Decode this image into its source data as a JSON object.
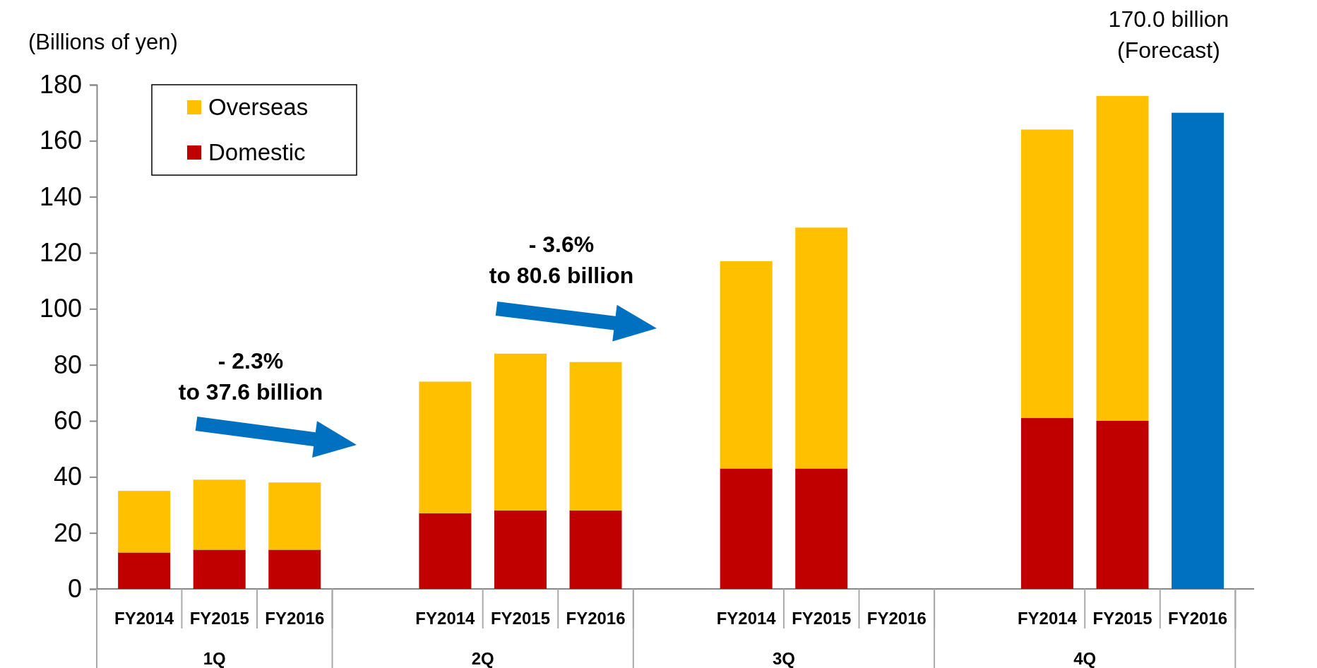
{
  "chart_data": {
    "type": "bar",
    "stacked": true,
    "ylabel": "(Billions of yen)",
    "categories": [
      "FY2014",
      "FY2015",
      "FY2016",
      "FY2014",
      "FY2015",
      "FY2016",
      "FY2014",
      "FY2015",
      "FY2016",
      "FY2014",
      "FY2015",
      "FY2016"
    ],
    "series": [
      {
        "name": "Domestic",
        "color": "#c00000",
        "values": [
          13,
          14,
          14,
          27,
          28,
          28,
          43,
          43,
          null,
          61,
          60,
          null
        ]
      },
      {
        "name": "Overseas",
        "color": "#ffc000",
        "values": [
          22,
          25,
          24,
          47,
          56,
          53,
          74,
          86,
          null,
          103,
          116,
          null
        ]
      },
      {
        "color": "#0070c0",
        "values": [
          null,
          null,
          null,
          null,
          null,
          null,
          null,
          null,
          null,
          null,
          null,
          170
        ]
      }
    ],
    "ylim": [
      0,
      180
    ],
    "yticks": [
      0,
      20,
      40,
      60,
      80,
      100,
      120,
      140,
      160,
      180
    ],
    "grid": false,
    "legend": "top left",
    "annotations": [
      "- 2.3%\nto 37.6 billion",
      "- 3.6%\nto 80.6 billion",
      "170.0 billion\n(Forecast)",
      "1Q",
      "2Q",
      "3Q",
      "4Q"
    ]
  }
}
